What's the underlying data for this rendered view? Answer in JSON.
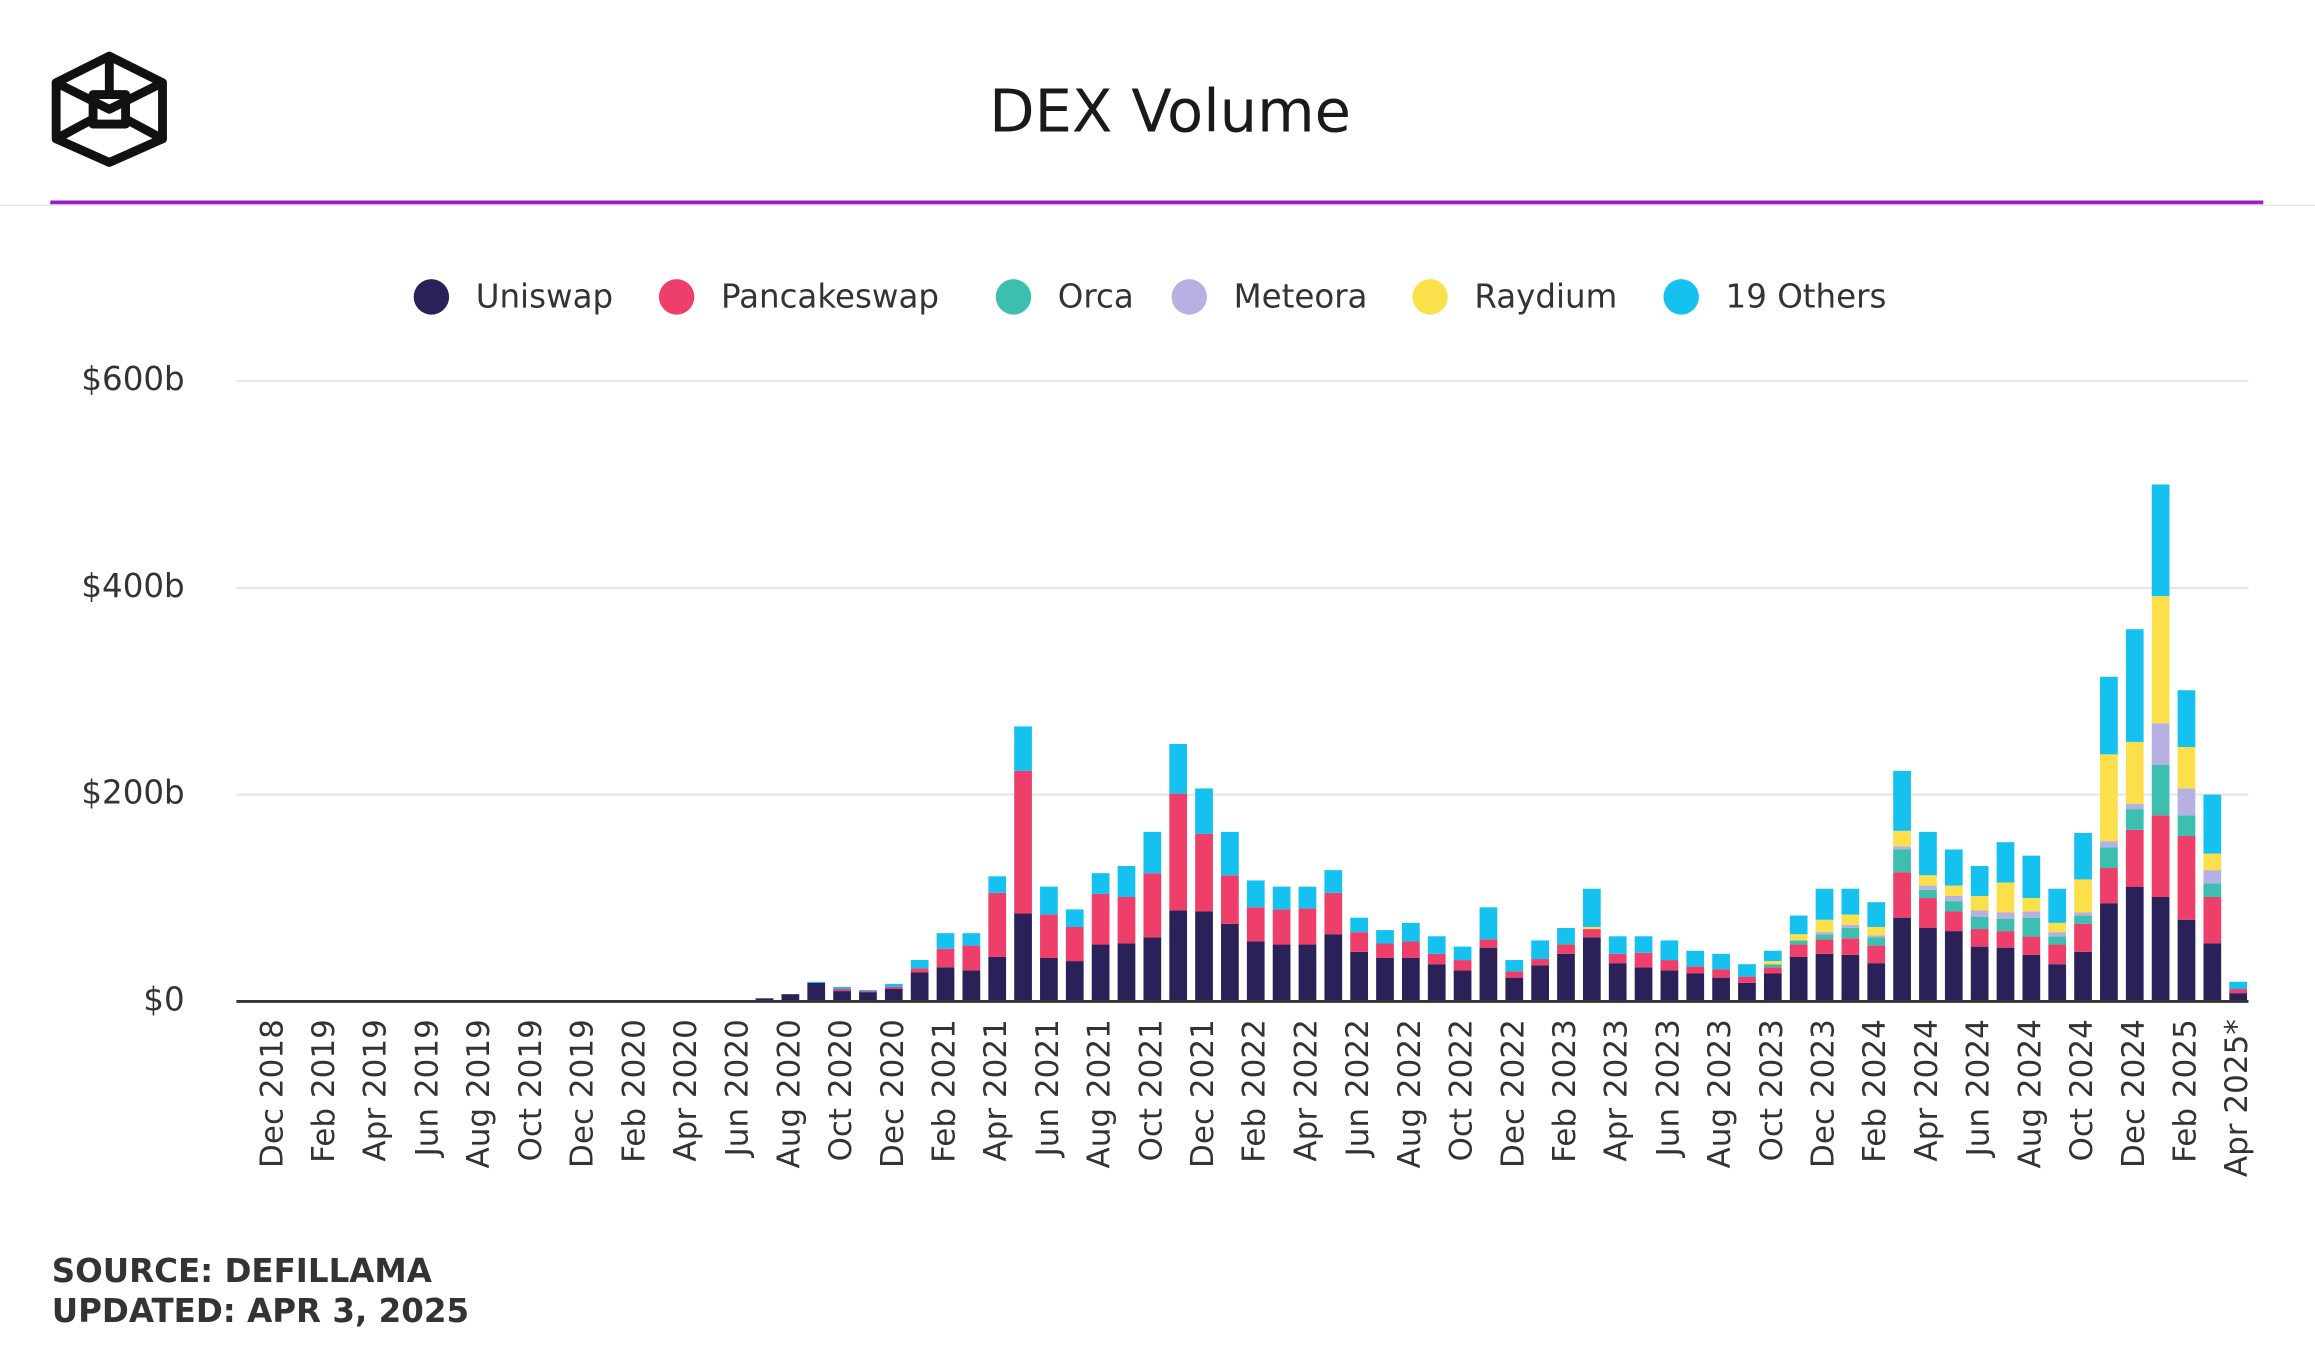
{
  "chart_data": {
    "type": "stacked_bar",
    "title": "DEX Volume",
    "source": "SOURCE: DEFILLAMA",
    "updated": "UPDATED: APR 3, 2025",
    "categories": [
      "Dec 2018",
      null,
      "Feb 2019",
      null,
      "Apr 2019",
      null,
      "Jun 2019",
      null,
      "Aug 2019",
      null,
      "Oct 2019",
      null,
      "Dec 2019",
      null,
      "Feb 2020",
      null,
      "Apr 2020",
      null,
      "Jun 2020",
      null,
      "Aug 2020",
      null,
      "Oct 2020",
      null,
      "Dec 2020",
      null,
      "Feb 2021",
      null,
      "Apr 2021",
      null,
      "Jun 2021",
      null,
      "Aug 2021",
      null,
      "Oct 2021",
      null,
      "Dec 2021",
      null,
      "Feb 2022",
      null,
      "Apr 2022",
      null,
      "Jun 2022",
      null,
      "Aug 2022",
      null,
      "Oct 2022",
      null,
      "Dec 2022",
      null,
      "Feb 2023",
      null,
      "Apr 2023",
      null,
      "Jun 2023",
      null,
      "Aug 2023",
      null,
      "Oct 2023",
      null,
      "Dec 2023",
      null,
      "Feb 2024",
      null,
      "Apr 2024",
      null,
      "Jun 2024",
      null,
      "Aug 2024",
      null,
      "Oct 2024",
      null,
      "Dec 2024",
      null,
      "Feb 2025",
      null,
      "Apr 2025*"
    ],
    "series": [
      {
        "name": "Uniswap",
        "color": "#2a2158",
        "values": [
          0,
          0,
          0,
          0,
          0,
          0,
          0,
          0,
          0,
          0,
          0,
          0,
          0,
          0,
          0,
          0,
          0,
          0,
          0,
          3,
          7,
          18,
          10,
          9,
          12,
          28,
          33,
          30,
          43,
          85,
          42,
          39,
          55,
          56,
          62,
          88,
          87,
          75,
          58,
          55,
          55,
          65,
          48,
          42,
          42,
          36,
          30,
          52,
          23,
          35,
          46,
          62,
          37,
          33,
          30,
          27,
          23,
          18,
          27,
          43,
          46,
          45,
          37,
          81,
          71,
          68,
          53,
          52,
          45,
          36,
          48,
          95,
          111,
          101,
          79,
          56,
          8
        ]
      },
      {
        "name": "Pancakeswap",
        "color": "#ee3e6a",
        "values": [
          0,
          0,
          0,
          0,
          0,
          0,
          0,
          0,
          0,
          0,
          0,
          0,
          0,
          0,
          0,
          0,
          0,
          0,
          0,
          0,
          0,
          0,
          2,
          1,
          2,
          4,
          18,
          24,
          62,
          138,
          42,
          33,
          49,
          45,
          62,
          113,
          75,
          47,
          33,
          34,
          35,
          40,
          19,
          14,
          16,
          10,
          10,
          8,
          6,
          6,
          9,
          8,
          9,
          14,
          10,
          7,
          8,
          6,
          6,
          12,
          14,
          16,
          17,
          44,
          29,
          19,
          17,
          16,
          18,
          19,
          27,
          34,
          55,
          79,
          81,
          45,
          4
        ]
      },
      {
        "name": "Orca",
        "color": "#3dbfb0",
        "values": [
          0,
          0,
          0,
          0,
          0,
          0,
          0,
          0,
          0,
          0,
          0,
          0,
          0,
          0,
          0,
          0,
          0,
          0,
          0,
          0,
          0,
          0,
          0,
          0,
          0,
          0,
          0,
          0,
          0,
          0,
          0,
          0,
          0,
          0,
          0,
          0,
          0,
          0,
          0,
          0,
          0,
          0,
          0,
          0,
          0,
          0,
          0,
          0,
          0,
          0,
          1,
          0,
          0,
          0,
          0,
          0,
          0,
          0,
          3,
          4,
          5,
          10,
          8,
          22,
          8,
          10,
          12,
          12,
          18,
          8,
          8,
          20,
          20,
          49,
          20,
          13,
          0
        ]
      },
      {
        "name": "Meteora",
        "color": "#b7b0e2",
        "values": [
          0,
          0,
          0,
          0,
          0,
          0,
          0,
          0,
          0,
          0,
          0,
          0,
          0,
          0,
          0,
          0,
          0,
          0,
          0,
          0,
          0,
          0,
          0,
          0,
          0,
          0,
          0,
          0,
          0,
          0,
          0,
          0,
          0,
          0,
          0,
          0,
          0,
          0,
          0,
          0,
          0,
          0,
          0,
          0,
          0,
          0,
          0,
          0,
          0,
          0,
          0,
          0,
          0,
          0,
          0,
          0,
          0,
          0,
          0,
          0,
          2,
          3,
          2,
          3,
          4,
          5,
          6,
          6,
          6,
          4,
          3,
          6,
          5,
          40,
          26,
          13,
          0
        ]
      },
      {
        "name": "Raydium",
        "color": "#fbe04b",
        "values": [
          0,
          0,
          0,
          0,
          0,
          0,
          0,
          0,
          0,
          0,
          0,
          0,
          0,
          0,
          0,
          0,
          0,
          0,
          0,
          0,
          0,
          0,
          0,
          0,
          0,
          0,
          0,
          0,
          0,
          0,
          0,
          0,
          0,
          0,
          0,
          0,
          0,
          0,
          0,
          0,
          0,
          0,
          0,
          0,
          0,
          0,
          0,
          0,
          0,
          0,
          0,
          2,
          0,
          0,
          0,
          0,
          0,
          0,
          3,
          6,
          12,
          10,
          8,
          15,
          10,
          10,
          14,
          29,
          13,
          9,
          32,
          84,
          60,
          123,
          40,
          16,
          0
        ]
      },
      {
        "name": "19 Others",
        "color": "#15c2ef",
        "values": [
          0,
          0,
          0,
          0,
          0,
          0,
          0,
          0,
          0,
          0,
          0,
          0,
          0,
          0,
          0,
          0,
          0,
          0,
          0,
          0,
          0,
          1,
          2,
          1,
          3,
          8,
          15,
          12,
          16,
          43,
          27,
          17,
          20,
          30,
          40,
          48,
          44,
          42,
          26,
          22,
          21,
          22,
          14,
          13,
          18,
          17,
          13,
          31,
          11,
          18,
          15,
          37,
          17,
          16,
          19,
          15,
          15,
          12,
          10,
          18,
          30,
          25,
          24,
          58,
          42,
          35,
          29,
          39,
          41,
          33,
          45,
          75,
          109,
          108,
          55,
          57,
          7
        ]
      }
    ],
    "ylim": [
      0,
      600
    ],
    "yticks": [
      {
        "value": 0,
        "label": "$0"
      },
      {
        "value": 200,
        "label": "$200b"
      },
      {
        "value": 400,
        "label": "$400b"
      },
      {
        "value": 600,
        "label": "$600b"
      }
    ],
    "grid": true,
    "legend": "top"
  }
}
